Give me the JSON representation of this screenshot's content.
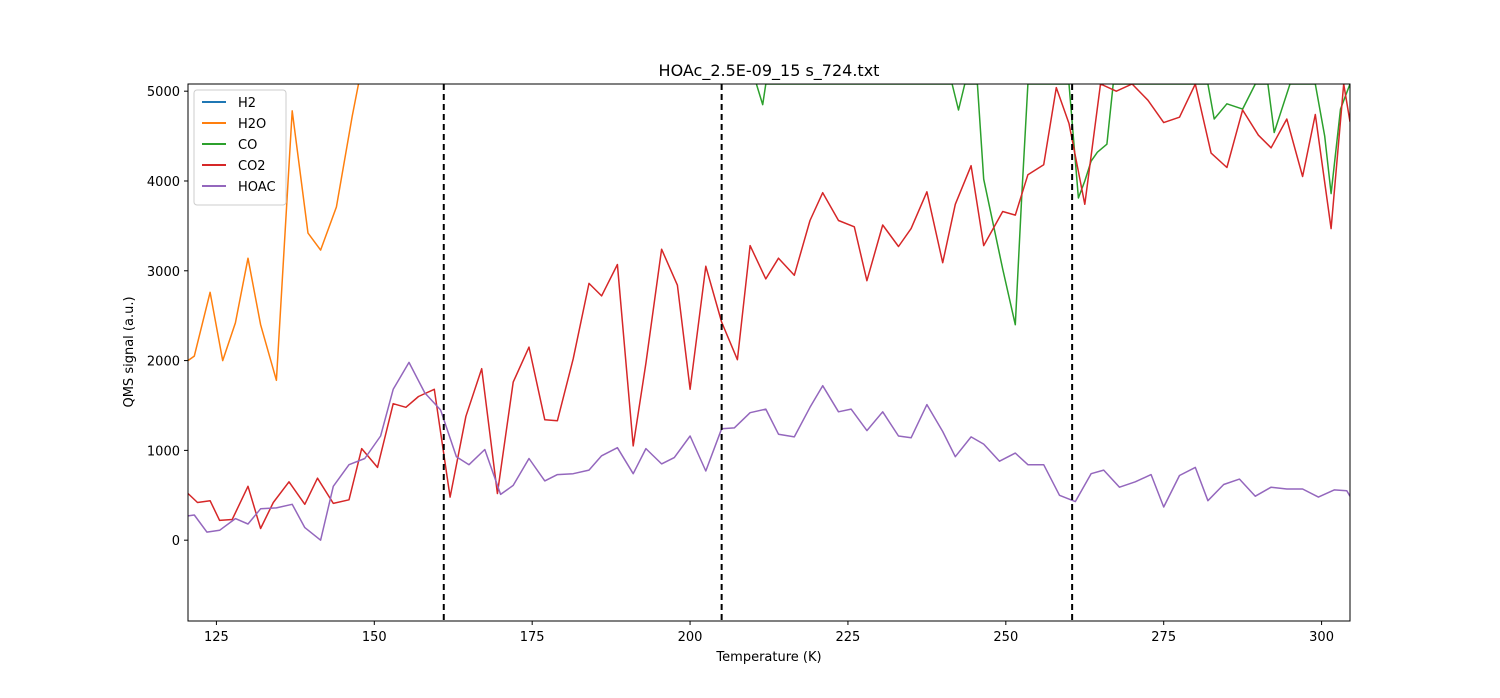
{
  "chart_data": {
    "type": "line",
    "title": "HOAc_2.5E-09_15 s_724.txt",
    "xlabel": "Temperature (K)",
    "ylabel": "QMS signal (a.u.)",
    "xlim": [
      120.5,
      304.5
    ],
    "ylim": [
      -900,
      5080
    ],
    "x_ticks": [
      125,
      150,
      175,
      200,
      225,
      250,
      275,
      300
    ],
    "y_ticks": [
      0,
      1000,
      2000,
      3000,
      4000,
      5000
    ],
    "grid": false,
    "legend_position": "top-left",
    "vlines": [
      161,
      205,
      260.5
    ],
    "series": [
      {
        "name": "H2",
        "color": "#1f77b4",
        "x": [],
        "y": []
      },
      {
        "name": "H2O",
        "color": "#ff7f0e",
        "x": [
          120.5,
          121.5,
          124,
          126,
          128,
          130,
          132,
          134.5,
          137,
          139.5,
          141.5,
          144,
          146.5,
          147.5
        ],
        "y": [
          2000,
          2050,
          2760,
          2000,
          2420,
          3140,
          2400,
          1780,
          4780,
          3420,
          3230,
          3710,
          4720,
          5080
        ]
      },
      {
        "name": "CO",
        "color": "#2ca02c",
        "x": [
          210.5,
          211.5,
          212,
          241.5,
          242.5,
          243.5,
          244.5,
          245.5,
          246.5,
          249.5,
          251.5,
          252.5,
          253.5,
          255,
          258,
          260,
          261.5,
          262.5,
          263.5,
          264.5,
          266,
          267,
          282,
          283,
          285,
          287.5,
          289.5,
          291.5,
          292.5,
          295,
          299,
          300.5,
          301.5,
          303,
          304.5
        ],
        "y": [
          5080,
          4850,
          5080,
          5080,
          4790,
          5080,
          5080,
          5080,
          4020,
          3020,
          2400,
          3800,
          5080,
          5080,
          5080,
          5080,
          3810,
          4000,
          4220,
          4320,
          4410,
          5080,
          5080,
          4690,
          4860,
          4800,
          5080,
          5080,
          4540,
          5080,
          5080,
          4500,
          3860,
          4800,
          5080
        ]
      },
      {
        "name": "CO2",
        "color": "#d62728",
        "x": [
          120.5,
          122,
          124,
          125.5,
          127.5,
          130,
          132,
          134,
          136.5,
          139,
          141,
          143.5,
          146,
          148,
          150.5,
          153,
          155,
          157,
          159.5,
          162,
          164.5,
          167,
          169.5,
          172,
          174.5,
          177,
          179,
          181.5,
          184,
          186,
          188.5,
          191,
          193,
          195.5,
          198,
          200,
          202.5,
          205,
          207.5,
          209.5,
          212,
          214,
          216.5,
          219,
          221,
          223.5,
          226,
          228,
          230.5,
          233,
          235,
          237.5,
          240,
          242,
          244.5,
          246.5,
          249.5,
          251.5,
          253.5,
          256,
          258,
          260,
          262.5,
          265,
          267.5,
          270,
          272.5,
          275,
          277.5,
          280,
          282.5,
          285,
          287.5,
          290,
          292,
          294.5,
          297,
          299,
          301.5,
          303.5,
          304.5
        ],
        "y": [
          520,
          420,
          440,
          220,
          230,
          600,
          130,
          420,
          650,
          400,
          690,
          410,
          450,
          1020,
          810,
          1520,
          1480,
          1600,
          1680,
          480,
          1380,
          1910,
          520,
          1760,
          2150,
          1340,
          1330,
          2020,
          2860,
          2720,
          3070,
          1050,
          1970,
          3240,
          2840,
          1680,
          3050,
          2430,
          2010,
          3280,
          2910,
          3140,
          2950,
          3560,
          3870,
          3560,
          3490,
          2890,
          3510,
          3270,
          3470,
          3880,
          3090,
          3740,
          4170,
          3280,
          3660,
          3620,
          4070,
          4180,
          5040,
          4640,
          3740,
          5080,
          5000,
          5080,
          4900,
          4650,
          4710,
          5080,
          4310,
          4150,
          4790,
          4510,
          4370,
          4690,
          4050,
          4740,
          3470,
          5080,
          4660
        ]
      },
      {
        "name": "HOAC",
        "color": "#9467bd",
        "x": [
          120.5,
          121.5,
          123.5,
          125.5,
          128,
          130,
          132,
          134.5,
          137,
          139,
          141.5,
          143.5,
          146,
          148.5,
          151,
          153,
          155.5,
          158,
          160.5,
          163,
          165,
          167.5,
          170,
          172,
          174.5,
          177,
          179,
          181.5,
          184,
          186,
          188.5,
          191,
          193,
          195.5,
          197.5,
          200,
          202.5,
          205,
          207,
          209.5,
          212,
          214,
          216.5,
          219,
          221,
          223.5,
          225.5,
          228,
          230.5,
          233,
          235,
          237.5,
          240,
          242,
          244.5,
          246.5,
          249,
          251.5,
          253.5,
          256,
          258.5,
          261,
          263.5,
          265.5,
          268,
          270.5,
          273,
          275,
          277.5,
          280,
          282,
          284.5,
          287,
          289.5,
          292,
          294.5,
          297,
          299.5,
          302,
          304,
          304.5
        ],
        "y": [
          270,
          280,
          90,
          110,
          240,
          180,
          350,
          360,
          400,
          140,
          0,
          600,
          840,
          910,
          1160,
          1680,
          1980,
          1640,
          1450,
          930,
          840,
          1010,
          510,
          610,
          910,
          660,
          730,
          740,
          780,
          940,
          1030,
          740,
          1020,
          850,
          920,
          1160,
          770,
          1240,
          1250,
          1420,
          1460,
          1180,
          1150,
          1480,
          1720,
          1430,
          1460,
          1220,
          1430,
          1160,
          1140,
          1510,
          1210,
          930,
          1150,
          1070,
          880,
          970,
          840,
          840,
          500,
          430,
          740,
          780,
          590,
          650,
          730,
          370,
          720,
          810,
          440,
          620,
          680,
          490,
          590,
          570,
          570,
          480,
          560,
          550,
          490
        ]
      }
    ]
  }
}
